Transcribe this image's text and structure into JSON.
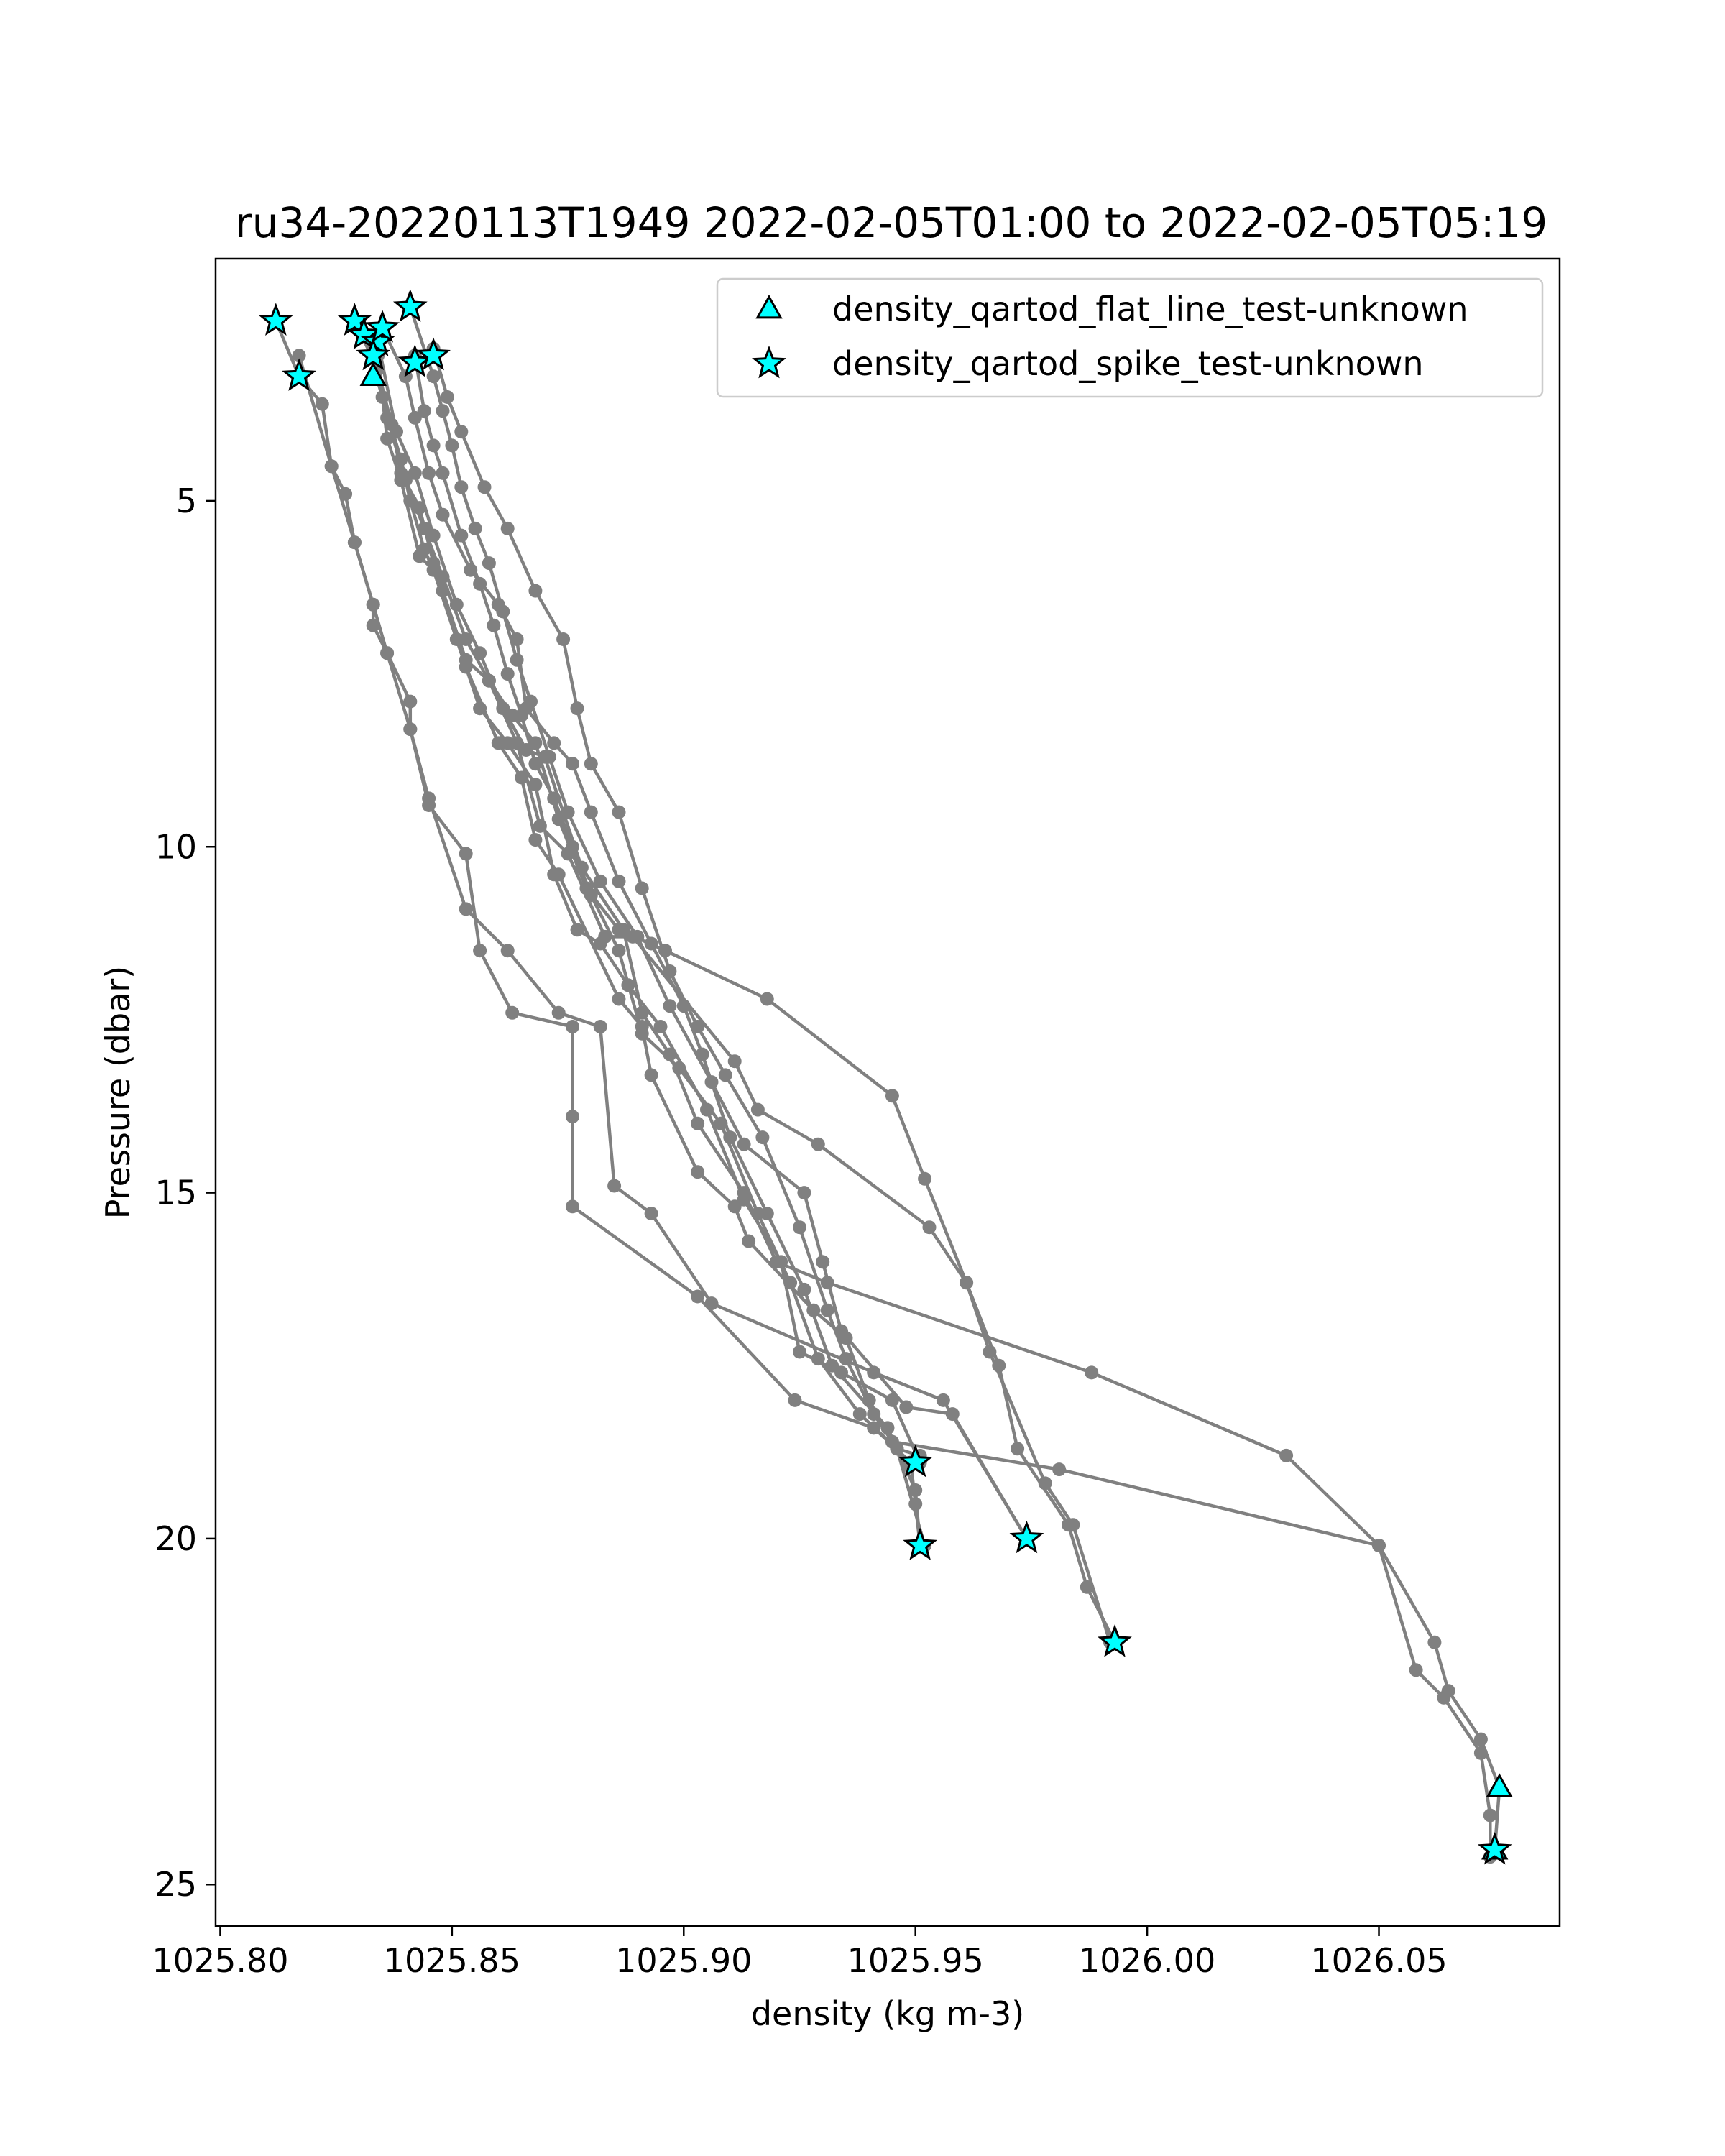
{
  "chart_data": {
    "type": "line",
    "title": "ru34-20220113T1949 2022-02-05T01:00 to 2022-02-05T05:19",
    "xlabel": "density (kg m-3)",
    "ylabel": "Pressure (dbar)",
    "xlim": [
      1025.799,
      1026.089
    ],
    "ylim": [
      25.6,
      1.5
    ],
    "y_inverted": true,
    "grid": false,
    "legend_position": "upper right",
    "xticks": [
      {
        "value": 1025.8,
        "label": "1025.80"
      },
      {
        "value": 1025.85,
        "label": "1025.85"
      },
      {
        "value": 1025.9,
        "label": "1025.90"
      },
      {
        "value": 1025.95,
        "label": "1025.95"
      },
      {
        "value": 1026.0,
        "label": "1026.00"
      },
      {
        "value": 1026.05,
        "label": "1026.05"
      }
    ],
    "yticks": [
      {
        "value": 5,
        "label": "5"
      },
      {
        "value": 10,
        "label": "10"
      },
      {
        "value": 15,
        "label": "15"
      },
      {
        "value": 20,
        "label": "20"
      },
      {
        "value": 25,
        "label": "25"
      }
    ],
    "colors": {
      "profile_line": "#808080",
      "flag_marker_fill": "#00ffff",
      "flag_marker_edge": "#000000"
    },
    "profiles": [
      {
        "points": [
          [
            1025.812,
            2.4
          ],
          [
            1025.817,
            3.2
          ],
          [
            1025.822,
            3.6
          ],
          [
            1025.824,
            4.5
          ],
          [
            1025.827,
            4.9
          ],
          [
            1025.829,
            5.6
          ],
          [
            1025.833,
            6.5
          ],
          [
            1025.833,
            6.8
          ],
          [
            1025.836,
            7.2
          ],
          [
            1025.841,
            7.9
          ],
          [
            1025.841,
            8.3
          ],
          [
            1025.845,
            9.4
          ],
          [
            1025.853,
            10.1
          ],
          [
            1025.856,
            11.5
          ],
          [
            1025.863,
            12.4
          ],
          [
            1025.876,
            12.6
          ],
          [
            1025.876,
            13.9
          ],
          [
            1025.876,
            15.2
          ],
          [
            1025.903,
            16.5
          ],
          [
            1025.924,
            18.0
          ],
          [
            1025.941,
            18.4
          ],
          [
            1025.949,
            18.9
          ],
          [
            1025.95,
            19.5
          ],
          [
            1025.951,
            20.1
          ]
        ]
      },
      {
        "points": [
          [
            1025.817,
            2.9
          ],
          [
            1025.824,
            4.5
          ],
          [
            1025.829,
            5.6
          ],
          [
            1025.833,
            6.5
          ],
          [
            1025.836,
            7.2
          ],
          [
            1025.841,
            8.3
          ],
          [
            1025.845,
            9.3
          ],
          [
            1025.853,
            10.9
          ],
          [
            1025.862,
            11.5
          ],
          [
            1025.873,
            12.4
          ],
          [
            1025.882,
            12.6
          ],
          [
            1025.885,
            14.9
          ],
          [
            1025.893,
            15.3
          ],
          [
            1025.906,
            16.6
          ],
          [
            1025.941,
            17.6
          ],
          [
            1025.956,
            18.0
          ],
          [
            1025.974,
            20.0
          ]
        ]
      },
      {
        "points": [
          [
            1025.829,
            2.4
          ],
          [
            1025.834,
            3.1
          ],
          [
            1025.837,
            3.9
          ],
          [
            1025.839,
            4.6
          ],
          [
            1025.843,
            5.1
          ],
          [
            1025.846,
            5.9
          ],
          [
            1025.851,
            7.0
          ],
          [
            1025.856,
            8.0
          ],
          [
            1025.862,
            8.5
          ],
          [
            1025.868,
            9.1
          ],
          [
            1025.872,
            10.4
          ],
          [
            1025.877,
            11.2
          ],
          [
            1025.882,
            11.4
          ],
          [
            1025.888,
            12.0
          ],
          [
            1025.895,
            12.6
          ],
          [
            1025.905,
            13.8
          ],
          [
            1025.913,
            15.1
          ],
          [
            1025.921,
            16.0
          ],
          [
            1025.925,
            17.3
          ],
          [
            1025.934,
            17.6
          ],
          [
            1025.945,
            18.0
          ],
          [
            1025.951,
            18.9
          ]
        ]
      },
      {
        "points": [
          [
            1025.831,
            2.6
          ],
          [
            1025.835,
            3.5
          ],
          [
            1025.839,
            4.4
          ],
          [
            1025.841,
            5.0
          ],
          [
            1025.844,
            5.7
          ],
          [
            1025.848,
            6.3
          ],
          [
            1025.853,
            7.3
          ],
          [
            1025.858,
            7.6
          ],
          [
            1025.864,
            8.5
          ],
          [
            1025.869,
            9.7
          ],
          [
            1025.875,
            10.1
          ],
          [
            1025.883,
            11.3
          ],
          [
            1025.889,
            11.3
          ],
          [
            1025.911,
            13.1
          ],
          [
            1025.916,
            13.8
          ],
          [
            1025.929,
            14.3
          ],
          [
            1025.953,
            15.5
          ],
          [
            1025.961,
            16.3
          ],
          [
            1025.968,
            17.5
          ],
          [
            1025.972,
            18.7
          ],
          [
            1025.983,
            19.8
          ],
          [
            1025.987,
            20.7
          ],
          [
            1025.993,
            21.5
          ]
        ]
      },
      {
        "points": [
          [
            1025.833,
            2.9
          ],
          [
            1025.836,
            3.8
          ],
          [
            1025.84,
            4.7
          ],
          [
            1025.844,
            5.4
          ],
          [
            1025.848,
            6.1
          ],
          [
            1025.853,
            7.0
          ],
          [
            1025.858,
            7.6
          ],
          [
            1025.863,
            8.1
          ],
          [
            1025.868,
            8.5
          ],
          [
            1025.873,
            9.6
          ],
          [
            1025.879,
            10.6
          ],
          [
            1025.886,
            11.2
          ],
          [
            1025.896,
            11.5
          ],
          [
            1025.918,
            12.2
          ],
          [
            1025.945,
            13.6
          ],
          [
            1025.952,
            14.8
          ],
          [
            1025.961,
            16.3
          ],
          [
            1025.966,
            17.3
          ],
          [
            1025.978,
            19.2
          ],
          [
            1025.984,
            19.8
          ],
          [
            1025.992,
            21.5
          ]
        ]
      },
      {
        "points": [
          [
            1025.834,
            2.7
          ],
          [
            1025.838,
            4.0
          ],
          [
            1025.842,
            4.6
          ],
          [
            1025.846,
            5.5
          ],
          [
            1025.851,
            6.5
          ],
          [
            1025.856,
            7.2
          ],
          [
            1025.861,
            8.0
          ],
          [
            1025.866,
            8.6
          ],
          [
            1025.87,
            8.7
          ],
          [
            1025.878,
            10.3
          ],
          [
            1025.887,
            11.2
          ],
          [
            1025.891,
            12.4
          ],
          [
            1025.897,
            13.0
          ],
          [
            1025.903,
            14.0
          ],
          [
            1025.913,
            15.0
          ],
          [
            1025.92,
            16.0
          ],
          [
            1025.931,
            16.3
          ],
          [
            1025.988,
            17.6
          ],
          [
            1026.03,
            18.8
          ],
          [
            1026.05,
            20.1
          ],
          [
            1026.062,
            21.5
          ],
          [
            1026.065,
            22.2
          ],
          [
            1026.072,
            22.9
          ],
          [
            1026.076,
            23.6
          ],
          [
            1026.075,
            24.5
          ]
        ]
      },
      {
        "points": [
          [
            1025.834,
            2.9
          ],
          [
            1025.836,
            4.1
          ],
          [
            1025.839,
            4.7
          ],
          [
            1025.843,
            5.8
          ],
          [
            1025.846,
            6.0
          ],
          [
            1025.853,
            7.4
          ],
          [
            1025.86,
            8.5
          ],
          [
            1025.865,
            9.0
          ],
          [
            1025.868,
            9.9
          ],
          [
            1025.873,
            10.4
          ],
          [
            1025.886,
            12.2
          ],
          [
            1025.891,
            12.6
          ],
          [
            1025.893,
            13.3
          ],
          [
            1025.903,
            14.7
          ],
          [
            1025.911,
            15.2
          ],
          [
            1025.914,
            15.7
          ],
          [
            1025.928,
            16.7
          ],
          [
            1025.935,
            17.1
          ],
          [
            1025.94,
            18.0
          ],
          [
            1025.945,
            18.6
          ],
          [
            1025.981,
            19.0
          ],
          [
            1026.05,
            20.1
          ],
          [
            1026.058,
            21.9
          ],
          [
            1026.064,
            22.3
          ],
          [
            1026.072,
            23.1
          ],
          [
            1026.074,
            24.0
          ],
          [
            1026.074,
            24.6
          ]
        ]
      },
      {
        "points": [
          [
            1025.835,
            2.5
          ],
          [
            1025.84,
            3.2
          ],
          [
            1025.842,
            3.8
          ],
          [
            1025.845,
            4.6
          ],
          [
            1025.848,
            5.2
          ],
          [
            1025.854,
            6.0
          ],
          [
            1025.86,
            6.5
          ],
          [
            1025.864,
            7.0
          ],
          [
            1025.866,
            8.0
          ],
          [
            1025.872,
            8.5
          ],
          [
            1025.876,
            8.8
          ],
          [
            1025.88,
            9.5
          ],
          [
            1025.886,
            10.5
          ],
          [
            1025.893,
            11.4
          ],
          [
            1025.9,
            12.3
          ],
          [
            1025.904,
            13.0
          ],
          [
            1025.91,
            14.2
          ],
          [
            1025.918,
            15.3
          ],
          [
            1025.926,
            16.4
          ],
          [
            1025.932,
            17.5
          ],
          [
            1025.944,
            18.4
          ],
          [
            1025.95,
            19.3
          ],
          [
            1025.951,
            20.1
          ]
        ]
      },
      {
        "points": [
          [
            1025.841,
            2.2
          ],
          [
            1025.846,
            3.2
          ],
          [
            1025.848,
            3.7
          ],
          [
            1025.85,
            4.2
          ],
          [
            1025.852,
            4.8
          ],
          [
            1025.855,
            5.4
          ],
          [
            1025.858,
            5.9
          ],
          [
            1025.861,
            6.6
          ],
          [
            1025.864,
            7.3
          ],
          [
            1025.867,
            7.9
          ],
          [
            1025.871,
            8.7
          ],
          [
            1025.875,
            9.5
          ],
          [
            1025.882,
            10.5
          ],
          [
            1025.89,
            11.3
          ],
          [
            1025.897,
            12.3
          ],
          [
            1025.906,
            13.4
          ],
          [
            1025.913,
            14.3
          ],
          [
            1025.926,
            15.0
          ],
          [
            1025.93,
            16.0
          ],
          [
            1025.934,
            17.0
          ],
          [
            1025.948,
            18.1
          ],
          [
            1025.958,
            18.2
          ],
          [
            1025.974,
            20.0
          ]
        ]
      },
      {
        "points": [
          [
            1025.846,
            2.8
          ],
          [
            1025.849,
            3.5
          ],
          [
            1025.852,
            4.0
          ],
          [
            1025.857,
            4.8
          ],
          [
            1025.862,
            5.4
          ],
          [
            1025.868,
            6.3
          ],
          [
            1025.874,
            7.0
          ],
          [
            1025.877,
            8.0
          ],
          [
            1025.88,
            8.8
          ],
          [
            1025.886,
            9.5
          ],
          [
            1025.891,
            10.6
          ],
          [
            1025.897,
            11.8
          ],
          [
            1025.903,
            12.6
          ],
          [
            1025.909,
            13.3
          ],
          [
            1025.917,
            14.2
          ],
          [
            1025.925,
            15.5
          ],
          [
            1025.931,
            16.7
          ],
          [
            1025.935,
            17.4
          ],
          [
            1025.941,
            18.2
          ],
          [
            1025.946,
            18.7
          ],
          [
            1025.951,
            18.8
          ]
        ]
      },
      {
        "points": [
          [
            1025.842,
            2.9
          ],
          [
            1025.844,
            3.7
          ],
          [
            1025.846,
            4.2
          ],
          [
            1025.848,
            4.6
          ],
          [
            1025.852,
            5.5
          ],
          [
            1025.856,
            6.2
          ],
          [
            1025.859,
            6.8
          ],
          [
            1025.862,
            7.5
          ],
          [
            1025.865,
            8.1
          ],
          [
            1025.868,
            8.8
          ],
          [
            1025.872,
            9.3
          ],
          [
            1025.876,
            10.0
          ],
          [
            1025.88,
            10.7
          ],
          [
            1025.886,
            11.5
          ],
          [
            1025.891,
            12.7
          ],
          [
            1025.899,
            13.2
          ],
          [
            1025.908,
            14.0
          ],
          [
            1025.916,
            15.3
          ],
          [
            1025.923,
            16.3
          ],
          [
            1025.929,
            17.4
          ],
          [
            1025.938,
            18.2
          ],
          [
            1025.946,
            18.7
          ],
          [
            1025.952,
            20.1
          ]
        ]
      }
    ],
    "legend": [
      {
        "label": "density_qartod_flat_line_test-unknown",
        "marker": "triangle"
      },
      {
        "label": "density_qartod_spike_test-unknown",
        "marker": "star"
      }
    ],
    "flags": {
      "flat_line": [
        [
          1025.833,
          3.2
        ],
        [
          1026.076,
          23.6
        ],
        [
          1026.075,
          24.5
        ]
      ],
      "spike": [
        [
          1025.812,
          2.4
        ],
        [
          1025.817,
          3.2
        ],
        [
          1025.829,
          2.4
        ],
        [
          1025.831,
          2.6
        ],
        [
          1025.834,
          2.7
        ],
        [
          1025.835,
          2.5
        ],
        [
          1025.841,
          2.2
        ],
        [
          1025.833,
          2.9
        ],
        [
          1025.842,
          3.0
        ],
        [
          1025.846,
          2.9
        ],
        [
          1025.95,
          18.9
        ],
        [
          1025.951,
          20.1
        ],
        [
          1025.974,
          20.0
        ],
        [
          1025.993,
          21.5
        ],
        [
          1026.075,
          24.5
        ]
      ]
    }
  }
}
